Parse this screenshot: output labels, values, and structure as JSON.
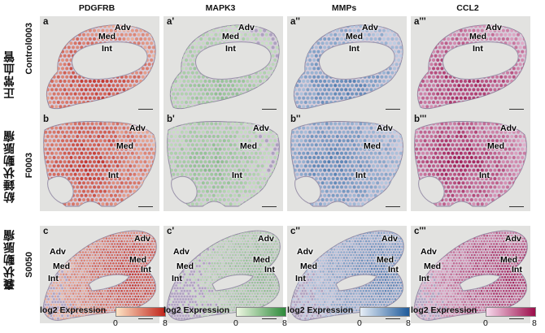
{
  "columns": [
    {
      "gene": "PDGFRB",
      "color_low": "#fde3c4",
      "color_high": "#c0241a"
    },
    {
      "gene": "MAPK3",
      "color_low": "#eef7e2",
      "color_high": "#2d8a3a"
    },
    {
      "gene": "MMPs",
      "color_low": "#e6edf6",
      "color_high": "#1e5a9a"
    },
    {
      "gene": "CCL2",
      "color_low": "#f6d9ec",
      "color_high": "#9c0d4a"
    }
  ],
  "rows": [
    {
      "group": "正常血管",
      "sample": "Control0003",
      "labels": [
        "a",
        "a'",
        "a''",
        "a'''"
      ],
      "annotations": {
        "adv": "Adv",
        "med": "Med",
        "int": "Int"
      }
    },
    {
      "group": "紡錘状動脈瘤",
      "sample": "F0003",
      "labels": [
        "b",
        "b'",
        "b''",
        "b'''"
      ],
      "annotations": {
        "adv": "Adv",
        "med": "Med",
        "int": "Int"
      }
    },
    {
      "group": "嚢状動脈瘤",
      "sample": "S0050",
      "labels": [
        "c",
        "c'",
        "c''",
        "c'''"
      ],
      "annotations": {
        "adv": "Adv",
        "med": "Med",
        "int": "Int",
        "med2": "Med",
        "int2": "Int"
      }
    }
  ],
  "legend": {
    "title": "log2 Expression",
    "min": "0",
    "max": "8"
  }
}
